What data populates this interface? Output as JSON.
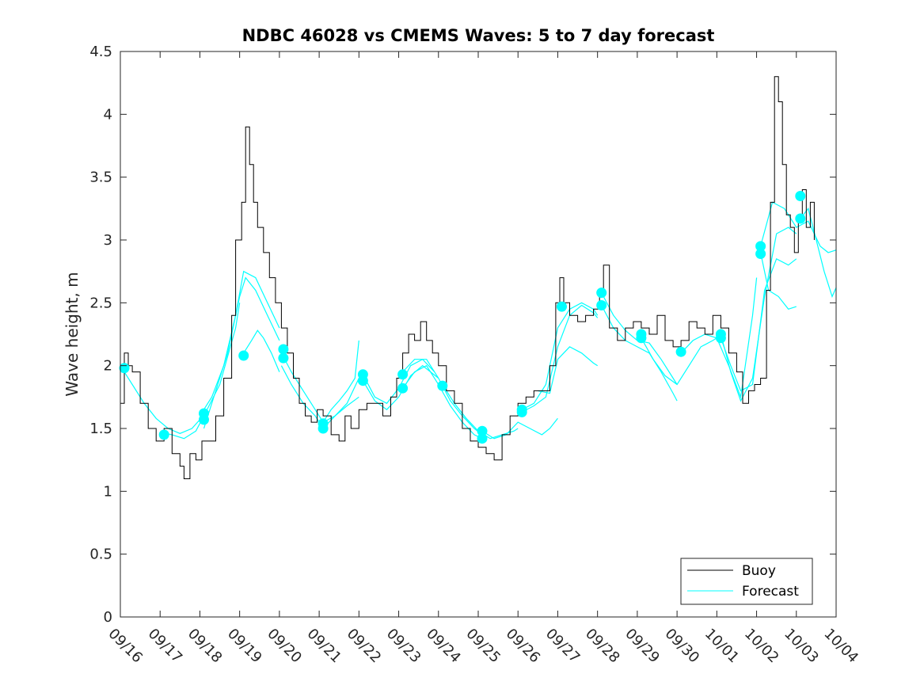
{
  "chart_data": {
    "type": "line",
    "title": "NDBC 46028 vs CMEMS Waves: 5 to 7 day forecast",
    "xlabel": "",
    "ylabel": "Wave height, m",
    "ylim": [
      0,
      4.5
    ],
    "yticks": [
      0,
      0.5,
      1,
      1.5,
      2,
      2.5,
      3,
      3.5,
      4,
      4.5
    ],
    "ytick_labels": [
      "0",
      "0.5",
      "1",
      "1.5",
      "2",
      "2.5",
      "3",
      "3.5",
      "4",
      "4.5"
    ],
    "xlim": [
      0,
      18
    ],
    "x_unit": "days since 09/16",
    "xticks": [
      0,
      1,
      2,
      3,
      4,
      5,
      6,
      7,
      8,
      9,
      10,
      11,
      12,
      13,
      14,
      15,
      16,
      17,
      18
    ],
    "xtick_labels": [
      "09/16",
      "09/17",
      "09/18",
      "09/19",
      "09/20",
      "09/21",
      "09/22",
      "09/23",
      "09/24",
      "09/25",
      "09/26",
      "09/27",
      "09/28",
      "09/29",
      "09/30",
      "10/01",
      "10/02",
      "10/03",
      "10/04"
    ],
    "grid": false,
    "legend": {
      "location": "bottom-right",
      "entries": [
        {
          "label": "Buoy",
          "color": "#000000"
        },
        {
          "label": "Forecast",
          "color": "#00FFFF"
        }
      ]
    },
    "colors": {
      "buoy": "#000000",
      "forecast": "#00FFFF"
    },
    "buoy_series": {
      "name": "Buoy",
      "x": [
        0,
        0.1,
        0.2,
        0.3,
        0.5,
        0.7,
        0.9,
        1.1,
        1.3,
        1.5,
        1.6,
        1.75,
        1.9,
        2.05,
        2.2,
        2.4,
        2.6,
        2.8,
        2.9,
        3.05,
        3.15,
        3.25,
        3.35,
        3.45,
        3.6,
        3.75,
        3.9,
        4.05,
        4.2,
        4.35,
        4.5,
        4.65,
        4.8,
        4.95,
        5.1,
        5.3,
        5.5,
        5.65,
        5.8,
        6.0,
        6.2,
        6.4,
        6.6,
        6.8,
        6.95,
        7.1,
        7.25,
        7.4,
        7.55,
        7.7,
        7.85,
        8.0,
        8.2,
        8.4,
        8.6,
        8.8,
        9.0,
        9.2,
        9.4,
        9.6,
        9.8,
        10.0,
        10.2,
        10.4,
        10.6,
        10.8,
        10.95,
        11.05,
        11.15,
        11.3,
        11.5,
        11.7,
        11.9,
        12.05,
        12.15,
        12.3,
        12.5,
        12.7,
        12.9,
        13.1,
        13.3,
        13.5,
        13.7,
        13.9,
        14.1,
        14.3,
        14.5,
        14.7,
        14.9,
        15.1,
        15.3,
        15.5,
        15.65,
        15.8,
        15.95,
        16.1,
        16.25,
        16.35,
        16.45,
        16.55,
        16.65,
        16.75,
        16.85,
        16.95,
        17.05,
        17.15,
        17.25,
        17.35,
        17.45
      ],
      "values": [
        1.7,
        2.1,
        2.0,
        1.95,
        1.7,
        1.5,
        1.4,
        1.5,
        1.3,
        1.2,
        1.1,
        1.3,
        1.25,
        1.4,
        1.4,
        1.6,
        1.9,
        2.4,
        3.0,
        3.3,
        3.9,
        3.6,
        3.3,
        3.1,
        2.9,
        2.7,
        2.5,
        2.3,
        2.1,
        1.9,
        1.7,
        1.6,
        1.55,
        1.65,
        1.6,
        1.45,
        1.4,
        1.6,
        1.5,
        1.65,
        1.7,
        1.7,
        1.6,
        1.75,
        1.9,
        2.1,
        2.25,
        2.2,
        2.35,
        2.2,
        2.1,
        2.0,
        1.8,
        1.7,
        1.5,
        1.4,
        1.35,
        1.3,
        1.25,
        1.45,
        1.6,
        1.7,
        1.75,
        1.8,
        1.8,
        2.0,
        2.5,
        2.7,
        2.5,
        2.4,
        2.35,
        2.4,
        2.45,
        2.6,
        2.8,
        2.3,
        2.2,
        2.3,
        2.35,
        2.3,
        2.25,
        2.4,
        2.2,
        2.15,
        2.2,
        2.35,
        2.3,
        2.25,
        2.4,
        2.3,
        2.1,
        1.95,
        1.7,
        1.8,
        1.85,
        1.9,
        2.6,
        3.3,
        4.3,
        4.1,
        3.6,
        3.2,
        3.1,
        2.9,
        3.2,
        3.4,
        3.1,
        3.3,
        3.0
      ]
    },
    "forecast_series": [
      {
        "name": "Forecast 1",
        "x": [
          0,
          0.3,
          0.6,
          0.9,
          1.2,
          1.5,
          1.8,
          2.0
        ],
        "values": [
          2.0,
          1.85,
          1.7,
          1.58,
          1.5,
          1.46,
          1.5,
          1.57
        ]
      },
      {
        "name": "Forecast 2",
        "x": [
          1.0,
          1.3,
          1.6,
          1.9,
          2.1,
          2.5,
          2.9,
          3.0
        ],
        "values": [
          1.47,
          1.45,
          1.42,
          1.48,
          1.6,
          1.85,
          2.3,
          2.5
        ]
      },
      {
        "name": "Forecast 3",
        "x": [
          2.0,
          2.3,
          2.6,
          2.9,
          3.1,
          3.4,
          3.7,
          4.0
        ],
        "values": [
          1.6,
          1.75,
          2.0,
          2.4,
          2.75,
          2.7,
          2.5,
          2.3
        ]
      },
      {
        "name": "Forecast 4",
        "x": [
          2.1,
          2.4,
          2.7,
          3.0,
          3.15,
          3.4,
          3.7,
          4.0
        ],
        "values": [
          1.5,
          1.8,
          2.1,
          2.55,
          2.7,
          2.6,
          2.4,
          2.2
        ]
      },
      {
        "name": "Forecast 5",
        "x": [
          3.1,
          3.3,
          3.45,
          3.6,
          3.8,
          4.0
        ],
        "values": [
          2.1,
          2.2,
          2.28,
          2.22,
          2.1,
          1.95
        ]
      },
      {
        "name": "Forecast 6",
        "x": [
          4.05,
          4.3,
          4.6,
          4.9,
          5.1,
          5.4,
          5.7,
          6.0
        ],
        "values": [
          2.1,
          1.95,
          1.8,
          1.65,
          1.55,
          1.6,
          1.7,
          1.9
        ]
      },
      {
        "name": "Forecast 7",
        "x": [
          4.05,
          4.3,
          4.6,
          4.9,
          5.1,
          5.4,
          5.7,
          6.0
        ],
        "values": [
          2.0,
          1.85,
          1.7,
          1.6,
          1.5,
          1.6,
          1.68,
          1.75
        ]
      },
      {
        "name": "Forecast 8",
        "x": [
          5.1,
          5.3,
          5.5,
          5.7,
          5.9,
          6.0
        ],
        "values": [
          1.55,
          1.65,
          1.72,
          1.8,
          1.9,
          2.2
        ]
      },
      {
        "name": "Forecast 9",
        "x": [
          6.1,
          6.4,
          6.7,
          7.0,
          7.3,
          7.6,
          7.9
        ],
        "values": [
          1.93,
          1.75,
          1.7,
          1.82,
          2.0,
          2.05,
          1.95
        ]
      },
      {
        "name": "Forecast 10",
        "x": [
          6.1,
          6.4,
          6.7,
          7.0,
          7.3,
          7.6,
          8.0
        ],
        "values": [
          1.88,
          1.72,
          1.65,
          1.75,
          1.92,
          2.0,
          1.9
        ]
      },
      {
        "name": "Forecast 11",
        "x": [
          7.1,
          7.4,
          7.7,
          8.0,
          8.3,
          8.6,
          8.9,
          9.1
        ],
        "values": [
          1.95,
          2.05,
          2.05,
          1.9,
          1.72,
          1.6,
          1.5,
          1.45
        ]
      },
      {
        "name": "Forecast 12",
        "x": [
          7.1,
          7.4,
          7.7,
          8.0,
          8.3,
          8.6,
          8.9,
          9.1
        ],
        "values": [
          1.82,
          1.95,
          2.0,
          1.85,
          1.68,
          1.55,
          1.45,
          1.42
        ]
      },
      {
        "name": "Forecast 13",
        "x": [
          8.1,
          8.4,
          8.7,
          9.0,
          9.3,
          9.6,
          9.9,
          10.0
        ],
        "values": [
          1.85,
          1.7,
          1.58,
          1.48,
          1.42,
          1.45,
          1.48,
          1.5
        ]
      },
      {
        "name": "Forecast 14",
        "x": [
          9.1,
          9.4,
          9.7,
          10.0,
          10.3,
          10.6,
          10.8,
          11.0
        ],
        "values": [
          1.48,
          1.42,
          1.45,
          1.55,
          1.5,
          1.45,
          1.5,
          1.58
        ]
      },
      {
        "name": "Forecast 15",
        "x": [
          10.1,
          10.4,
          10.7,
          11.0,
          11.3,
          11.6,
          11.9,
          12.0
        ],
        "values": [
          1.65,
          1.7,
          1.85,
          2.3,
          2.45,
          2.5,
          2.45,
          2.4
        ]
      },
      {
        "name": "Forecast 16",
        "x": [
          10.1,
          10.4,
          10.7,
          11.0,
          11.3,
          11.6,
          11.9,
          12.0
        ],
        "values": [
          1.63,
          1.68,
          1.75,
          2.15,
          2.4,
          2.48,
          2.42,
          2.38
        ]
      },
      {
        "name": "Forecast 17",
        "x": [
          10.5,
          10.8,
          11.0,
          11.3,
          11.6,
          11.9,
          12.0
        ],
        "values": [
          1.8,
          1.78,
          2.05,
          2.15,
          2.1,
          2.02,
          2.0
        ]
      },
      {
        "name": "Forecast 18",
        "x": [
          12.1,
          12.4,
          12.7,
          13.0,
          13.3,
          13.6,
          13.9,
          14.0
        ],
        "values": [
          2.48,
          2.3,
          2.2,
          2.15,
          2.1,
          1.95,
          1.78,
          1.72
        ]
      },
      {
        "name": "Forecast 19",
        "x": [
          12.1,
          12.4,
          12.7,
          13.0,
          13.3,
          13.6,
          13.9,
          14.0
        ],
        "values": [
          2.58,
          2.4,
          2.28,
          2.2,
          2.18,
          2.05,
          1.9,
          1.85
        ]
      },
      {
        "name": "Forecast 20",
        "x": [
          13.1,
          13.4,
          13.7,
          14.0,
          14.3,
          14.6,
          14.9,
          15.0
        ],
        "values": [
          2.22,
          2.05,
          1.92,
          1.85,
          2.0,
          2.15,
          2.2,
          2.22
        ]
      },
      {
        "name": "Forecast 21",
        "x": [
          14.1,
          14.4,
          14.7,
          15.0,
          15.3,
          15.6,
          15.9,
          16.0
        ],
        "values": [
          2.1,
          2.2,
          2.25,
          2.22,
          2.0,
          1.75,
          2.4,
          2.7
        ]
      },
      {
        "name": "Forecast 22",
        "x": [
          15.1,
          15.35,
          15.6,
          15.9,
          16.2,
          16.5,
          16.8,
          17.0
        ],
        "values": [
          2.22,
          2.0,
          1.8,
          1.85,
          2.6,
          2.85,
          2.8,
          2.85
        ]
      },
      {
        "name": "Forecast 23",
        "x": [
          15.1,
          15.35,
          15.6,
          15.9,
          16.2,
          16.5,
          16.8,
          17.0
        ],
        "values": [
          2.25,
          1.95,
          1.72,
          1.9,
          2.55,
          3.05,
          3.1,
          3.05
        ]
      },
      {
        "name": "Forecast 24",
        "x": [
          16.1,
          16.3,
          16.55,
          16.8,
          17.0
        ],
        "values": [
          2.9,
          2.6,
          2.55,
          2.45,
          2.47
        ]
      },
      {
        "name": "Forecast 25",
        "x": [
          16.1,
          16.4,
          16.7,
          17.0,
          17.3,
          17.6,
          17.8,
          18.0
        ],
        "values": [
          2.95,
          3.3,
          3.25,
          3.1,
          3.15,
          2.95,
          2.9,
          2.92
        ]
      },
      {
        "name": "Forecast 26",
        "x": [
          17.1,
          17.3,
          17.5,
          17.7,
          17.9,
          18.0
        ],
        "values": [
          3.17,
          3.25,
          3.0,
          2.75,
          2.55,
          2.62
        ]
      }
    ],
    "forecast_markers": {
      "x": [
        0.1,
        1.1,
        2.1,
        2.1,
        3.1,
        4.1,
        4.1,
        5.1,
        5.1,
        6.1,
        6.1,
        7.1,
        7.1,
        8.1,
        9.1,
        9.1,
        10.1,
        10.1,
        11.1,
        12.1,
        12.1,
        13.1,
        13.1,
        14.1,
        15.1,
        15.1,
        16.1,
        16.1,
        17.1,
        17.1
      ],
      "values": [
        1.98,
        1.45,
        1.62,
        1.57,
        2.08,
        2.13,
        2.06,
        1.54,
        1.5,
        1.93,
        1.88,
        1.93,
        1.82,
        1.84,
        1.48,
        1.42,
        1.65,
        1.63,
        2.47,
        2.58,
        2.48,
        2.25,
        2.22,
        2.11,
        2.25,
        2.22,
        2.95,
        2.89,
        3.35,
        3.17
      ]
    }
  }
}
